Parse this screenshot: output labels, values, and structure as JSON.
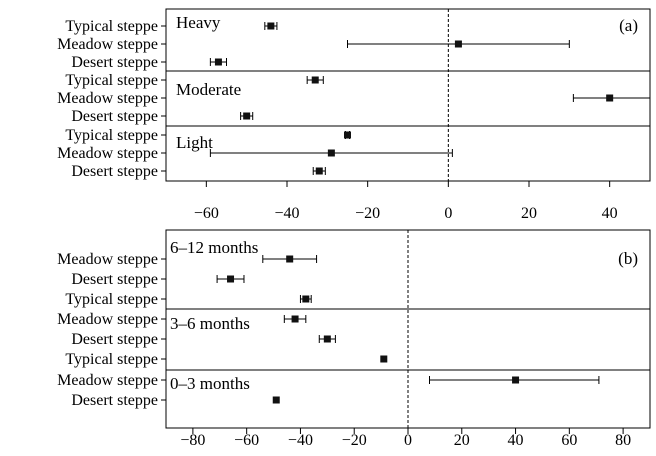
{
  "chart_data": [
    {
      "type": "forest",
      "panel_label": "(a)",
      "xlim": [
        -70,
        50
      ],
      "xticks": [
        -60,
        -40,
        -20,
        0,
        20,
        40
      ],
      "tick_labels": [
        "−60",
        "−40",
        "−20",
        "0",
        "20",
        "40"
      ],
      "reference_line": 0,
      "groups": [
        {
          "label": "Heavy",
          "rows": [
            {
              "category": "Typical steppe",
              "mean": -44,
              "lo": -45.5,
              "hi": -42.5
            },
            {
              "category": "Meadow  steppe",
              "mean": 2.5,
              "lo": -25,
              "hi": 30
            },
            {
              "category": "Desert steppe",
              "mean": -57,
              "lo": -59,
              "hi": -55
            }
          ]
        },
        {
          "label": "Moderate",
          "rows": [
            {
              "category": "Typical steppe",
              "mean": -33,
              "lo": -35,
              "hi": -31
            },
            {
              "category": "Meadow  steppe",
              "mean": 40,
              "lo": 31,
              "hi": 50
            },
            {
              "category": "Desert steppe",
              "mean": -50,
              "lo": -51.5,
              "hi": -48.5
            }
          ]
        },
        {
          "label": "Light",
          "rows": [
            {
              "category": "Typical steppe",
              "mean": -25,
              "lo": -25.5,
              "hi": -24.5
            },
            {
              "category": "Meadow  steppe",
              "mean": -29,
              "lo": -59,
              "hi": 1
            },
            {
              "category": "Desert steppe",
              "mean": -32,
              "lo": -33.5,
              "hi": -30.5
            }
          ]
        }
      ]
    },
    {
      "type": "forest",
      "panel_label": "(b)",
      "xlim": [
        -90,
        90
      ],
      "xticks": [
        -80,
        -60,
        -40,
        -20,
        0,
        20,
        40,
        60,
        80
      ],
      "tick_labels": [
        "−80",
        "−60",
        "−40",
        "−20",
        "0",
        "20",
        "40",
        "60",
        "80"
      ],
      "reference_line": 0,
      "groups": [
        {
          "label": "6–12 months",
          "rows": [
            {
              "category": "Meadow  steppe",
              "mean": -44,
              "lo": -54,
              "hi": -34
            },
            {
              "category": "Desert steppe",
              "mean": -66,
              "lo": -71,
              "hi": -61
            },
            {
              "category": "Typical steppe",
              "mean": -38,
              "lo": -40,
              "hi": -36
            }
          ]
        },
        {
          "label": "3–6 months",
          "rows": [
            {
              "category": "Meadow  steppe",
              "mean": -42,
              "lo": -46,
              "hi": -38
            },
            {
              "category": "Desert steppe",
              "mean": -30,
              "lo": -33,
              "hi": -27
            },
            {
              "category": "Typical steppe",
              "mean": -9,
              "lo": -9,
              "hi": -9
            }
          ]
        },
        {
          "label": "0–3 months",
          "rows": [
            {
              "category": "Meadow  steppe",
              "mean": 40,
              "lo": 8,
              "hi": 71
            },
            {
              "category": "Desert steppe",
              "mean": -49,
              "lo": -49,
              "hi": -49
            }
          ]
        }
      ]
    }
  ]
}
